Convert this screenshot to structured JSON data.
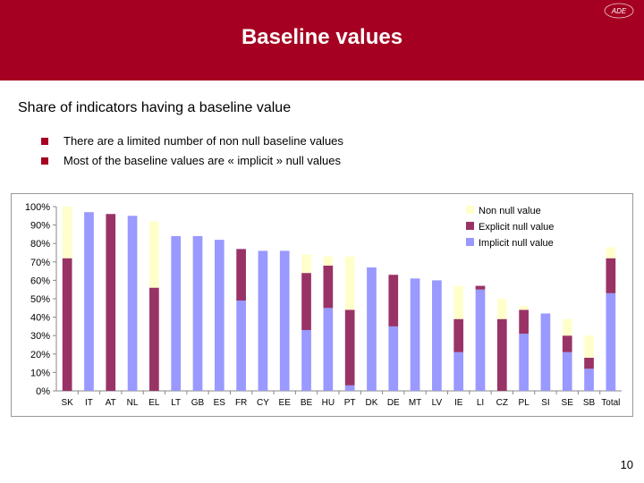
{
  "header": {
    "title": "Baseline values",
    "logo_text": "ADE"
  },
  "subtitle": "Share of indicators having a baseline value",
  "bullets": [
    "There are a limited number of non null baseline values",
    "Most of the baseline values are « implicit » null values"
  ],
  "page_number": "10",
  "colors": {
    "header": "#a50021",
    "non_null": "#ffffcc",
    "explicit_null": "#993366",
    "implicit_null": "#9999ff"
  },
  "chart_data": {
    "type": "bar",
    "stacked": true,
    "categories": [
      "SK",
      "IT",
      "AT",
      "NL",
      "EL",
      "LT",
      "GB",
      "ES",
      "FR",
      "CY",
      "EE",
      "BE",
      "HU",
      "PT",
      "DK",
      "DE",
      "MT",
      "LV",
      "IE",
      "LI",
      "CZ",
      "PL",
      "SI",
      "SE",
      "SB",
      "Total"
    ],
    "series": [
      {
        "name": "Implicit null value",
        "color": "#9999ff",
        "values": [
          0,
          97,
          0,
          95,
          0,
          84,
          84,
          82,
          49,
          76,
          76,
          33,
          45,
          3,
          67,
          35,
          61,
          60,
          21,
          55,
          0,
          31,
          42,
          21,
          12,
          53
        ]
      },
      {
        "name": "Explicit null value",
        "color": "#993366",
        "values": [
          72,
          0,
          96,
          0,
          56,
          0,
          0,
          0,
          28,
          0,
          0,
          31,
          23,
          41,
          0,
          28,
          0,
          0,
          18,
          2,
          39,
          13,
          0,
          9,
          6,
          19
        ]
      },
      {
        "name": "Non null value",
        "color": "#ffffcc",
        "values": [
          28,
          0,
          0,
          0,
          36,
          0,
          0,
          0,
          0,
          0,
          0,
          10,
          5,
          29,
          0,
          0,
          0,
          0,
          18,
          0,
          11,
          2,
          0,
          9,
          12,
          6
        ]
      }
    ],
    "ylim": [
      0,
      100
    ],
    "yticks": [
      "0%",
      "10%",
      "20%",
      "30%",
      "40%",
      "50%",
      "60%",
      "70%",
      "80%",
      "90%",
      "100%"
    ],
    "legend_position": "top-right",
    "grid": false
  }
}
